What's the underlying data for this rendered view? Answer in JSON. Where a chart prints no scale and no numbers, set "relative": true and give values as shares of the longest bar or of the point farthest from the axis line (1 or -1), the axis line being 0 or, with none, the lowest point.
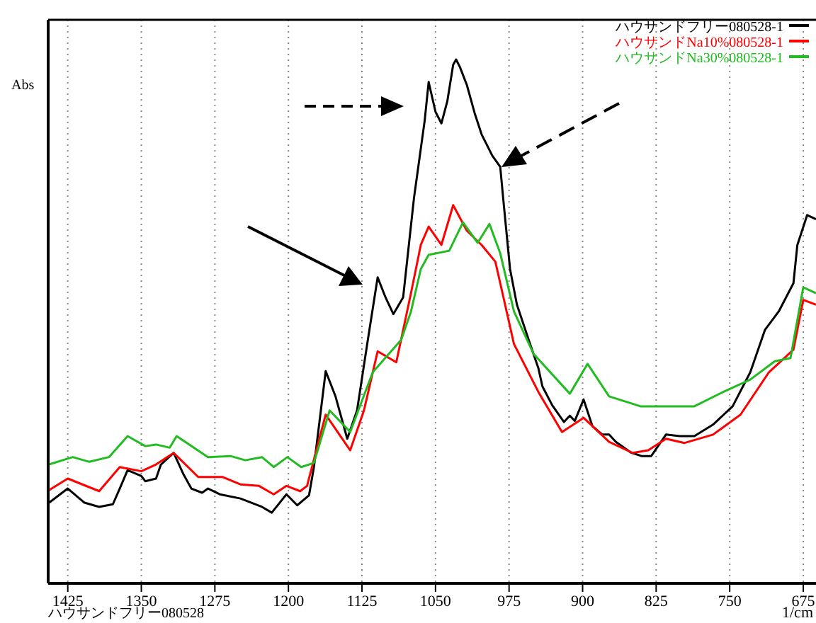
{
  "chart_data": {
    "type": "line",
    "relative": true,
    "ylabel": "Abs",
    "xlabel": "1/cm",
    "annotations": [
      "ハウサンドフリー080528"
    ],
    "xlim": [
      1445,
      662
    ],
    "xticks": [
      1425,
      1350,
      1275,
      1200,
      1125,
      1050,
      975,
      900,
      825,
      750,
      675
    ],
    "grid": "x",
    "legend": "top right",
    "line_style": "solid",
    "marker": "none",
    "series": [
      {
        "name": "ハウサンドフリー080528-1",
        "color": "#000000",
        "x": [
          1444,
          1425,
          1408,
          1393,
          1379,
          1372,
          1364,
          1350,
          1346,
          1335,
          1330,
          1317,
          1307,
          1299,
          1288,
          1282,
          1270,
          1249,
          1227,
          1217,
          1202,
          1191,
          1179,
          1174,
          1162,
          1152,
          1140,
          1130,
          1119,
          1109,
          1101,
          1093,
          1083,
          1072,
          1061,
          1057,
          1050,
          1044,
          1038,
          1032,
          1029,
          1025,
          1018,
          1010,
          1003,
          992,
          984,
          981,
          974,
          967,
          955,
          945,
          941,
          931,
          919,
          913,
          908,
          899,
          890,
          880,
          873,
          866,
          851,
          840,
          830,
          815,
          801,
          786,
          767,
          747,
          729,
          714,
          700,
          685,
          681,
          671,
          662
        ],
        "values": [
          0.154,
          0.181,
          0.154,
          0.146,
          0.151,
          0.181,
          0.216,
          0.205,
          0.195,
          0.2,
          0.227,
          0.249,
          0.208,
          0.181,
          0.173,
          0.181,
          0.17,
          0.162,
          0.146,
          0.135,
          0.17,
          0.149,
          0.168,
          0.222,
          0.405,
          0.357,
          0.276,
          0.33,
          0.465,
          0.584,
          0.546,
          0.514,
          0.546,
          0.735,
          0.884,
          0.957,
          0.9,
          0.878,
          0.92,
          0.99,
          1.0,
          0.985,
          0.951,
          0.897,
          0.857,
          0.816,
          0.795,
          0.735,
          0.6,
          0.532,
          0.465,
          0.41,
          0.376,
          0.34,
          0.308,
          0.32,
          0.31,
          0.351,
          0.3,
          0.284,
          0.284,
          0.27,
          0.25,
          0.243,
          0.243,
          0.284,
          0.281,
          0.281,
          0.303,
          0.338,
          0.403,
          0.484,
          0.519,
          0.573,
          0.646,
          0.703,
          0.695
        ]
      },
      {
        "name": "ハウサンドNa10%080528-1",
        "color": "#ff0000",
        "x": [
          1444,
          1425,
          1393,
          1372,
          1350,
          1335,
          1317,
          1292,
          1267,
          1249,
          1230,
          1215,
          1202,
          1188,
          1181,
          1162,
          1137,
          1123,
          1109,
          1090,
          1075,
          1065,
          1057,
          1044,
          1032,
          1018,
          1003,
          989,
          984,
          970,
          945,
          921,
          899,
          873,
          849,
          833,
          815,
          796,
          767,
          739,
          710,
          685,
          675,
          662
        ],
        "values": [
          0.178,
          0.2,
          0.176,
          0.222,
          0.214,
          0.227,
          0.249,
          0.203,
          0.203,
          0.189,
          0.186,
          0.17,
          0.186,
          0.176,
          0.186,
          0.322,
          0.254,
          0.33,
          0.443,
          0.422,
          0.554,
          0.646,
          0.681,
          0.646,
          0.722,
          0.673,
          0.646,
          0.614,
          0.573,
          0.457,
          0.365,
          0.289,
          0.316,
          0.27,
          0.249,
          0.254,
          0.276,
          0.268,
          0.284,
          0.322,
          0.403,
          0.446,
          0.541,
          0.532
        ]
      },
      {
        "name": "ハウサンドNa30%080528-1",
        "color": "#22bb22",
        "x": [
          1444,
          1420,
          1403,
          1383,
          1364,
          1346,
          1335,
          1321,
          1314,
          1282,
          1259,
          1244,
          1227,
          1215,
          1201,
          1187,
          1174,
          1158,
          1137,
          1114,
          1085,
          1075,
          1065,
          1057,
          1036,
          1022,
          1007,
          995,
          984,
          970,
          950,
          913,
          895,
          873,
          841,
          815,
          786,
          757,
          729,
          704,
          688,
          675,
          662
        ],
        "values": [
          0.227,
          0.241,
          0.232,
          0.241,
          0.281,
          0.262,
          0.265,
          0.259,
          0.281,
          0.241,
          0.243,
          0.235,
          0.241,
          0.222,
          0.241,
          0.222,
          0.23,
          0.33,
          0.289,
          0.403,
          0.465,
          0.519,
          0.6,
          0.627,
          0.635,
          0.689,
          0.65,
          0.686,
          0.63,
          0.519,
          0.438,
          0.362,
          0.419,
          0.357,
          0.338,
          0.338,
          0.338,
          0.365,
          0.389,
          0.424,
          0.43,
          0.565,
          0.554
        ]
      }
    ]
  }
}
